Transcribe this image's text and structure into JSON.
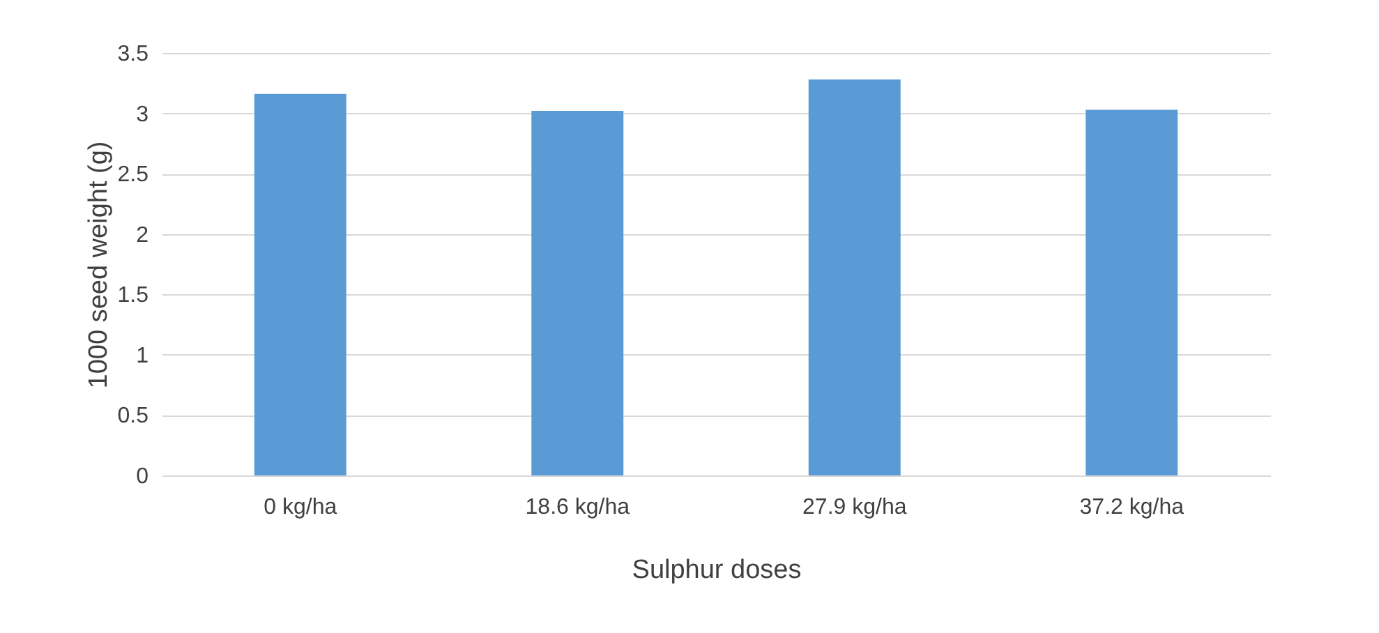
{
  "chart_data": {
    "type": "bar",
    "xlabel": "Sulphur doses",
    "ylabel": "1000 seed weight (g)",
    "categories": [
      "0 kg/ha",
      "18.6 kg/ha",
      "27.9 kg/ha",
      "37.2 kg/ha"
    ],
    "values": [
      3.16,
      3.02,
      3.28,
      3.03
    ],
    "color": "#5b9bd5",
    "ylim": [
      0,
      3.5
    ],
    "yticks": [
      0,
      0.5,
      1,
      1.5,
      2,
      2.5,
      3,
      3.5
    ],
    "grid": "y"
  }
}
